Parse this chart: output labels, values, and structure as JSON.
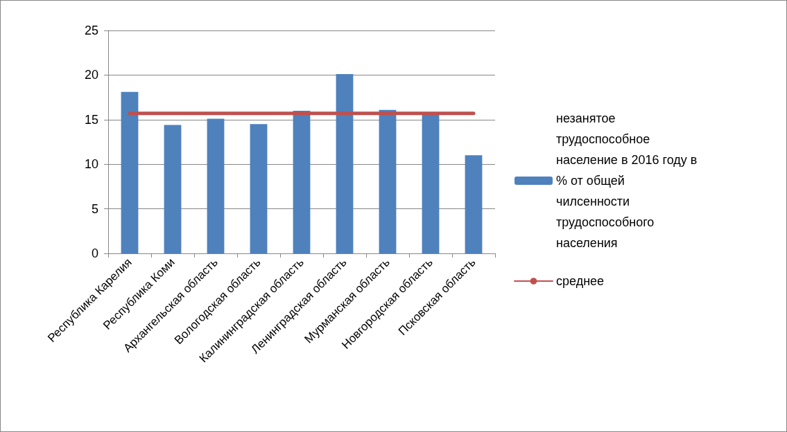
{
  "chart_data": {
    "type": "bar",
    "categories": [
      "Республика Карелия",
      "Республика Коми",
      "Архангельская область",
      "Вологодская область",
      "Калининградская область",
      "Ленинградская область",
      "Мурманская область",
      "Новгородская область",
      "Псковская область"
    ],
    "series": [
      {
        "name": "незанятое трудоспособное население в 2016 году в % от общей чилсенности трудоспособного населения",
        "color": "#4f81bd",
        "values": [
          18.1,
          14.4,
          15.1,
          14.5,
          16.0,
          20.1,
          16.1,
          15.6,
          11.0
        ]
      },
      {
        "name": "среднее",
        "type": "line",
        "color": "#c0504d",
        "values": [
          15.7,
          15.7,
          15.7,
          15.7,
          15.7,
          15.7,
          15.7,
          15.7,
          15.7
        ]
      }
    ],
    "ylim": [
      0,
      25
    ],
    "yticks": [
      0,
      5,
      10,
      15,
      20,
      25
    ],
    "grid": "y",
    "legend": "right",
    "marker": "none"
  }
}
